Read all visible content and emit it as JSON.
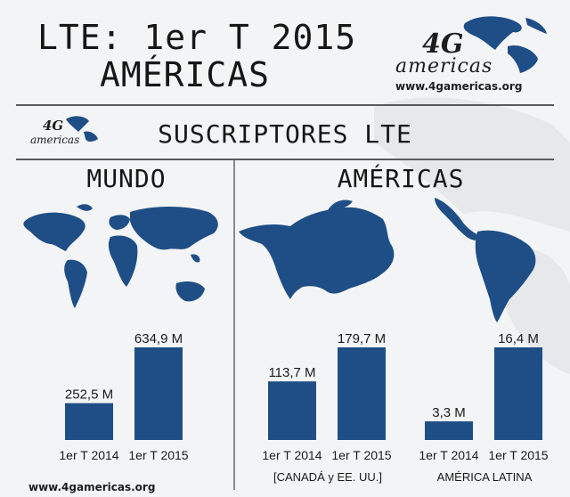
{
  "header": {
    "title_line1": "LTE: 1er T 2015",
    "title_line2": "AMÉRICAS",
    "logo_4g": "4G",
    "logo_word": "americas",
    "logo_url": "www.4gamericas.org"
  },
  "section": {
    "title": "SUSCRIPTORES LTE",
    "small_logo_4g": "4G",
    "small_logo_word": "americas"
  },
  "panels": {
    "left_title": "MUNDO",
    "right_title": "AMÉRICAS"
  },
  "colors": {
    "bar": "#1f4e86",
    "map": "#1f4e86"
  },
  "chart_data": [
    {
      "type": "bar",
      "categories": [
        "1er T 2014",
        "1er T 2015"
      ],
      "values": [
        252.5,
        634.9
      ],
      "value_labels": [
        "252,5 M",
        "634,9 M"
      ],
      "group_label": ""
    },
    {
      "type": "bar",
      "categories": [
        "1er T 2014",
        "1er T 2015"
      ],
      "values": [
        113.7,
        179.7
      ],
      "value_labels": [
        "113,7 M",
        "179,7 M"
      ],
      "group_label": "[CANADÁ y EE. UU.]"
    },
    {
      "type": "bar",
      "categories": [
        "1er T 2014",
        "1er T 2015"
      ],
      "values": [
        3.3,
        16.4
      ],
      "value_labels": [
        "3,3 M",
        "16,4 M"
      ],
      "group_label": "AMÉRICA LATINA"
    }
  ],
  "footer": {
    "url": "www.4gamericas.org"
  }
}
